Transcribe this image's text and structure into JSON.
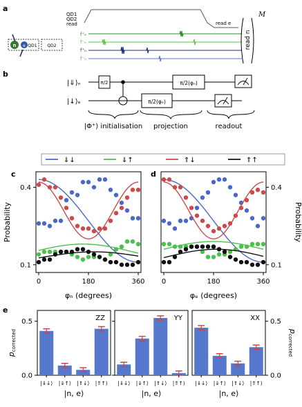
{
  "panels": {
    "a": "a",
    "b": "b",
    "c": "c",
    "d": "d",
    "e": "e"
  },
  "pulse": {
    "left_labels": [
      "QD1",
      "QD2",
      "read"
    ],
    "read_e": "read e",
    "read_n": "read n",
    "M": "M",
    "device_labels": [
      "n",
      "e",
      "QD1",
      "QD2"
    ],
    "freq_labels": [
      "f⁺ₑ",
      "f⁻ₑ",
      "f⁺ₙ",
      "f⁻ₙ"
    ],
    "colors": {
      "green": "#2e8b2e",
      "lightgreen": "#55cc44",
      "navy": "#1f2f70",
      "blue": "#5577cc"
    }
  },
  "circuit": {
    "qubit_n": "|⇓⟩ₙ",
    "qubit_e": "|↓⟩ₑ",
    "gate_half": "π/2",
    "gate_phi_n": "π/2(φₙ)",
    "gate_phi_e": "π/2(φₑ)",
    "stage_init": "|Φ⁺⟩ initialisation",
    "stage_proj": "projection",
    "stage_read": "readout"
  },
  "legend": [
    "⇓↓",
    "⇓↑",
    "⇑↓",
    "⇑↑"
  ],
  "colors": {
    "dd": "#4a68c6",
    "du": "#4cc04c",
    "ud": "#cc4a4a",
    "uu": "#111111",
    "bar": "#5577cc",
    "err": "#cc4444"
  },
  "chart_data": [
    {
      "panel": "c",
      "type": "scatter",
      "xlabel": "φₙ (degrees)",
      "ylabel": "Probability",
      "xlim": [
        -10,
        370
      ],
      "ylim": [
        0.07,
        0.46
      ],
      "xticks": [
        "0",
        "180",
        "360"
      ],
      "yticks": [
        "0.1",
        "0.4"
      ],
      "x": [
        0,
        20,
        40,
        60,
        80,
        100,
        120,
        140,
        160,
        180,
        200,
        220,
        240,
        260,
        280,
        300,
        320,
        340,
        360
      ],
      "series": [
        {
          "name": "⇓↓",
          "color": "dd",
          "points": [
            0.26,
            0.26,
            0.25,
            0.27,
            0.27,
            0.35,
            0.38,
            0.37,
            0.42,
            0.42,
            0.4,
            0.43,
            0.43,
            0.39,
            0.37,
            0.34,
            0.31,
            0.28,
            0.28
          ],
          "fit": [
            0.27,
            0.16,
            0,
            2
          ]
        },
        {
          "name": "⇓↑",
          "color": "du",
          "points": [
            0.14,
            0.15,
            0.15,
            0.15,
            0.15,
            0.15,
            0.14,
            0.13,
            0.12,
            0.13,
            0.13,
            0.13,
            0.12,
            0.14,
            0.16,
            0.17,
            0.19,
            0.19,
            0.18
          ],
          "fit": [
            0.15,
            0.03,
            160,
            2
          ]
        },
        {
          "name": "⇑↓",
          "color": "ud",
          "points": [
            0.41,
            0.43,
            0.4,
            0.4,
            0.36,
            0.32,
            0.28,
            0.25,
            0.24,
            0.24,
            0.23,
            0.24,
            0.24,
            0.27,
            0.3,
            0.32,
            0.36,
            0.39,
            0.39
          ],
          "fit": [
            0.31,
            0.11,
            0,
            1
          ]
        },
        {
          "name": "⇑↑",
          "color": "uu",
          "points": [
            0.11,
            0.12,
            0.12,
            0.14,
            0.15,
            0.15,
            0.15,
            0.16,
            0.16,
            0.15,
            0.14,
            0.13,
            0.12,
            0.11,
            0.11,
            0.1,
            0.1,
            0.1,
            0.11
          ],
          "fit": [
            0.13,
            0.02,
            200,
            2
          ]
        }
      ]
    },
    {
      "panel": "d",
      "type": "scatter",
      "xlabel": "φₑ (degrees)",
      "ylabel": "Probability",
      "xlim": [
        -10,
        370
      ],
      "ylim": [
        0.07,
        0.46
      ],
      "xticks": [
        "0",
        "180",
        "360"
      ],
      "yticks": [
        "0.1",
        "0.4"
      ],
      "x": [
        0,
        20,
        40,
        60,
        80,
        100,
        120,
        140,
        160,
        180,
        200,
        220,
        240,
        260,
        280,
        300,
        320,
        340,
        360
      ],
      "series": [
        {
          "name": "⇓↓",
          "color": "dd",
          "points": [
            0.27,
            0.26,
            0.24,
            0.27,
            0.27,
            0.28,
            0.32,
            0.36,
            0.38,
            0.42,
            0.43,
            0.43,
            0.4,
            0.37,
            0.34,
            0.31,
            0.28,
            0.25,
            0.28
          ],
          "fit": [
            0.27,
            0.16,
            0,
            2
          ]
        },
        {
          "name": "⇓↑",
          "color": "du",
          "points": [
            0.18,
            0.18,
            0.17,
            0.17,
            0.17,
            0.17,
            0.17,
            0.15,
            0.13,
            0.13,
            0.14,
            0.14,
            0.15,
            0.16,
            0.17,
            0.17,
            0.18,
            0.18,
            0.18
          ],
          "fit": [
            0.16,
            0.03,
            180,
            2
          ]
        },
        {
          "name": "⇑↓",
          "color": "ud",
          "points": [
            0.43,
            0.43,
            0.4,
            0.4,
            0.36,
            0.32,
            0.29,
            0.27,
            0.25,
            0.23,
            0.24,
            0.25,
            0.26,
            0.29,
            0.32,
            0.35,
            0.38,
            0.39,
            0.38
          ],
          "fit": [
            0.31,
            0.11,
            0,
            1
          ]
        },
        {
          "name": "⇑↑",
          "color": "uu",
          "points": [
            0.11,
            0.11,
            0.13,
            0.15,
            0.16,
            0.17,
            0.17,
            0.17,
            0.17,
            0.17,
            0.16,
            0.15,
            0.13,
            0.12,
            0.11,
            0.11,
            0.1,
            0.1,
            0.11
          ],
          "fit": [
            0.13,
            0.03,
            190,
            2
          ]
        }
      ]
    },
    {
      "panel": "e",
      "type": "bar",
      "label": "ZZ",
      "ylabel": "p_corrected",
      "xlabel": "|n, e⟩",
      "ylim": [
        0,
        0.6
      ],
      "yticks": [
        "0.0",
        "0.5"
      ],
      "categories": [
        "|⇓↓⟩",
        "|⇓↑⟩",
        "|⇑↓⟩",
        "|⇑↑⟩"
      ],
      "values": [
        0.41,
        0.09,
        0.05,
        0.43
      ],
      "errors": [
        0.02,
        0.02,
        0.02,
        0.02
      ]
    },
    {
      "panel": "e",
      "type": "bar",
      "label": "YY",
      "ylabel": "p_corrected",
      "xlabel": "|n, e⟩",
      "ylim": [
        0,
        0.6
      ],
      "yticks": [
        "0.0",
        "0.5"
      ],
      "categories": [
        "|⇓↓⟩",
        "|⇓↑⟩",
        "|⇑↓⟩",
        "|⇑↑⟩"
      ],
      "values": [
        0.1,
        0.34,
        0.53,
        0.02
      ],
      "errors": [
        0.02,
        0.02,
        0.02,
        0.02
      ]
    },
    {
      "panel": "e",
      "type": "bar",
      "label": "XX",
      "ylabel": "p_corrected",
      "xlabel": "|n, e⟩",
      "ylim": [
        0,
        0.6
      ],
      "yticks": [
        "0.0",
        "0.5"
      ],
      "categories": [
        "|⇓↓⟩",
        "|⇓↑⟩",
        "|⇑↓⟩",
        "|⇑↑⟩"
      ],
      "values": [
        0.44,
        0.18,
        0.11,
        0.26
      ],
      "errors": [
        0.02,
        0.02,
        0.02,
        0.02
      ]
    }
  ]
}
